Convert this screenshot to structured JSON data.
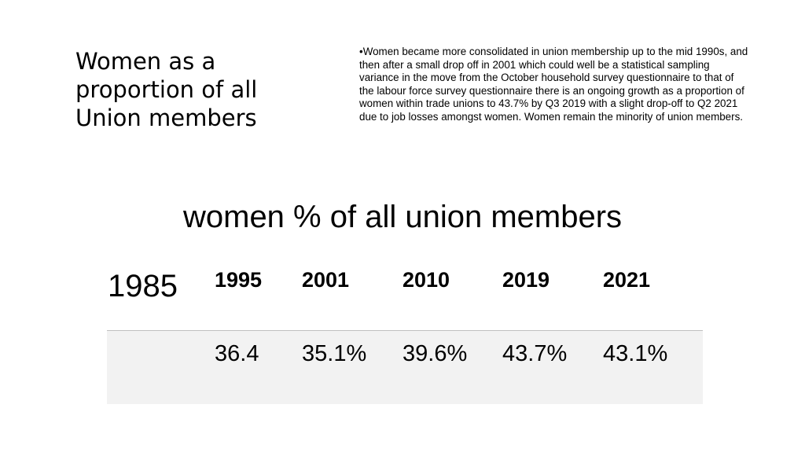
{
  "header": {
    "title": "Women as a proportion of all Union members",
    "note": "Women became more consolidated in union membership up to the mid 1990s, and then after a small drop off in 2001 which could well be a statistical sampling variance in the move from the October household survey questionnaire to that of the labour force survey questionnaire there is an ongoing growth as a proportion of women within trade unions to 43.7% by Q3 2019 with a slight drop-off to Q2 2021 due to job  losses amongst women. Women remain the minority of union members."
  },
  "table": {
    "title": "women % of all union members",
    "columns": [
      "1985",
      "1995",
      "2001",
      "2010",
      "2019",
      "2021"
    ],
    "rows": [
      [
        null,
        "36.4",
        "35.1%",
        "39.6%",
        "43.7%",
        "43.1%"
      ]
    ]
  }
}
